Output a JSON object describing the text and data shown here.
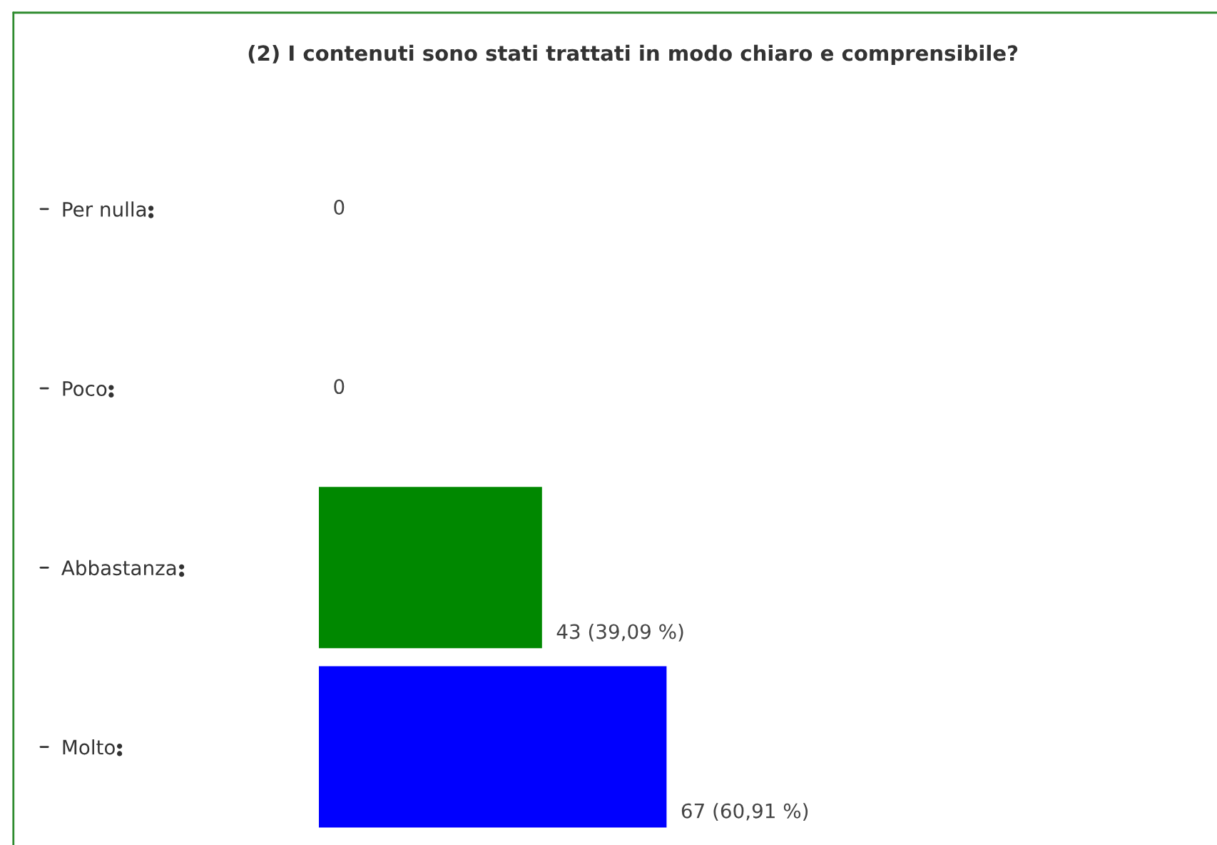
{
  "chart_data": {
    "type": "bar",
    "orientation": "horizontal",
    "title": "(2) I contenuti sono stati trattati in modo chiaro e comprensibile?",
    "categories": [
      "Per nulla",
      "Poco",
      "Abbastanza",
      "Molto"
    ],
    "values": [
      0,
      0,
      43,
      67
    ],
    "colors": [
      "#008800",
      "#008800",
      "#008800",
      "#0000ff"
    ],
    "value_labels": [
      "0",
      "0",
      "43 (39,09 %)",
      "67 (60,91 %)"
    ],
    "legend": false
  }
}
